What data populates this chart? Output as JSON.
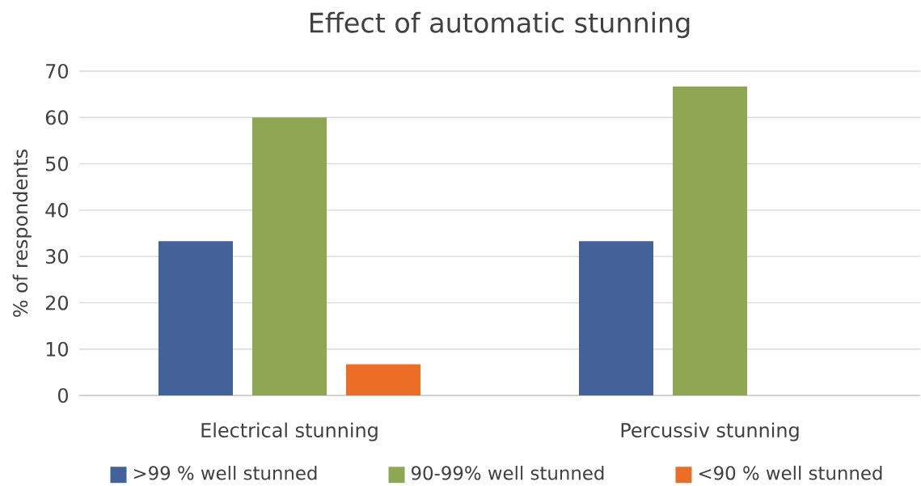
{
  "chart_data": {
    "type": "bar",
    "title": "Effect of automatic stunning",
    "ylabel": "% of respondents",
    "categories": [
      "Electrical stunning",
      "Percussiv stunning"
    ],
    "series": [
      {
        "name": ">99 % well stunned",
        "color": "#43629a",
        "values": [
          33.3,
          33.3
        ]
      },
      {
        "name": "90-99% well stunned",
        "color": "#8fa752",
        "values": [
          60,
          66.7
        ]
      },
      {
        "name": "<90 % well stunned",
        "color": "#ec6d25",
        "values": [
          6.7,
          0
        ]
      }
    ],
    "ylim": [
      0,
      70
    ],
    "yticks": [
      0,
      10,
      20,
      30,
      40,
      50,
      60,
      70
    ],
    "grid": "y",
    "legend": "bottom"
  }
}
